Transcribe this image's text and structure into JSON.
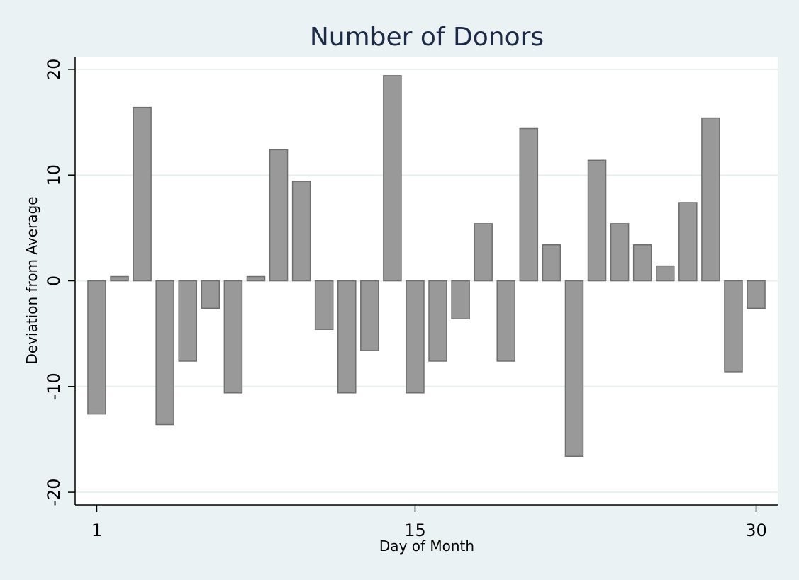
{
  "chart_data": {
    "type": "bar",
    "title": "Number of Donors",
    "xlabel": "Day of Month",
    "ylabel": "Deviation from Average",
    "x": [
      1,
      2,
      3,
      4,
      5,
      6,
      7,
      8,
      9,
      10,
      11,
      12,
      13,
      14,
      15,
      16,
      17,
      18,
      19,
      20,
      21,
      22,
      23,
      24,
      25,
      26,
      27,
      28,
      29,
      30
    ],
    "values": [
      -12.6,
      0.4,
      16.4,
      -13.6,
      -7.6,
      -2.6,
      -10.6,
      0.4,
      12.4,
      9.4,
      -4.6,
      -10.6,
      -6.6,
      19.4,
      -10.6,
      -7.6,
      -3.6,
      5.4,
      -7.6,
      14.4,
      3.4,
      -16.6,
      11.4,
      5.4,
      3.4,
      1.4,
      7.4,
      15.4,
      -8.6,
      -2.6
    ],
    "xticks": [
      1,
      15,
      30
    ],
    "xtick_labels": [
      "1",
      "15",
      "30"
    ],
    "yticks": [
      -20,
      -10,
      0,
      10,
      20
    ],
    "ytick_labels": [
      "-20",
      "-10",
      "0",
      "10",
      "20"
    ],
    "xlim": [
      0.05,
      30.95
    ],
    "ylim": [
      -21.2,
      21.2
    ],
    "grid": true,
    "colors": {
      "background": "#eaf2f3",
      "plot_background": "#ffffff",
      "bar_fill": "#999999",
      "bar_outline": "#6e6e6e",
      "gridline": "#e8eff0",
      "title": "#1a2a48"
    }
  }
}
